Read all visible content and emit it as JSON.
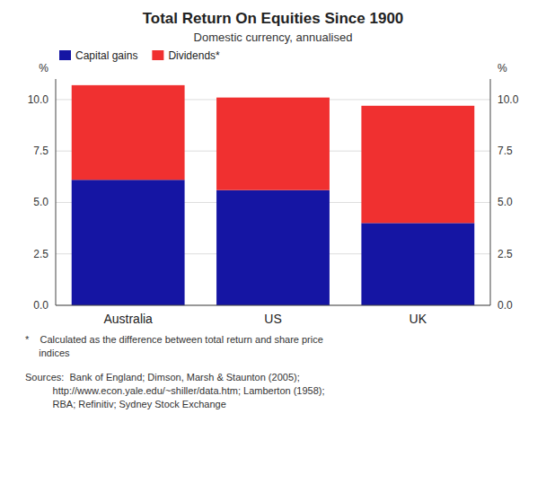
{
  "chart_data": {
    "type": "bar",
    "title": "Total Return On Equities Since 1900",
    "subtitle": "Domestic currency, annualised",
    "categories": [
      "Australia",
      "US",
      "UK"
    ],
    "series": [
      {
        "name": "Capital gains",
        "color": "#1515a3",
        "values": [
          6.1,
          5.6,
          4.0
        ]
      },
      {
        "name": "Dividends*",
        "color": "#f03030",
        "values": [
          4.6,
          4.5,
          5.7
        ]
      }
    ],
    "stacked": true,
    "ylim": [
      0,
      11.0
    ],
    "yticks": [
      {
        "value": 0.0,
        "label": "0.0"
      },
      2.5,
      {
        "value": 5.0,
        "label": "5.0"
      },
      7.5,
      {
        "value": 10.0,
        "label": "10.0"
      }
    ],
    "y2lim": [
      0,
      11.0
    ],
    "y2ticks": [
      {
        "value": 0.0,
        "label": "0.0"
      },
      2.5,
      {
        "value": 5.0,
        "label": "5.0"
      },
      7.5,
      {
        "value": 10.0,
        "label": "10.0"
      }
    ],
    "ylabel": "%",
    "y2label": "%",
    "grid": true,
    "legend": "upper left",
    "annotations": [
      "*    Calculated as the difference between total return and share price\n     indices",
      "Sources:  Bank of England; Dimson, Marsh & Staunton (2005);\n          http://www.econ.yale.edu/~shiller/data.htm; Lamberton (1958);\n          RBA; Refinitiv; Sydney Stock Exchange"
    ]
  }
}
